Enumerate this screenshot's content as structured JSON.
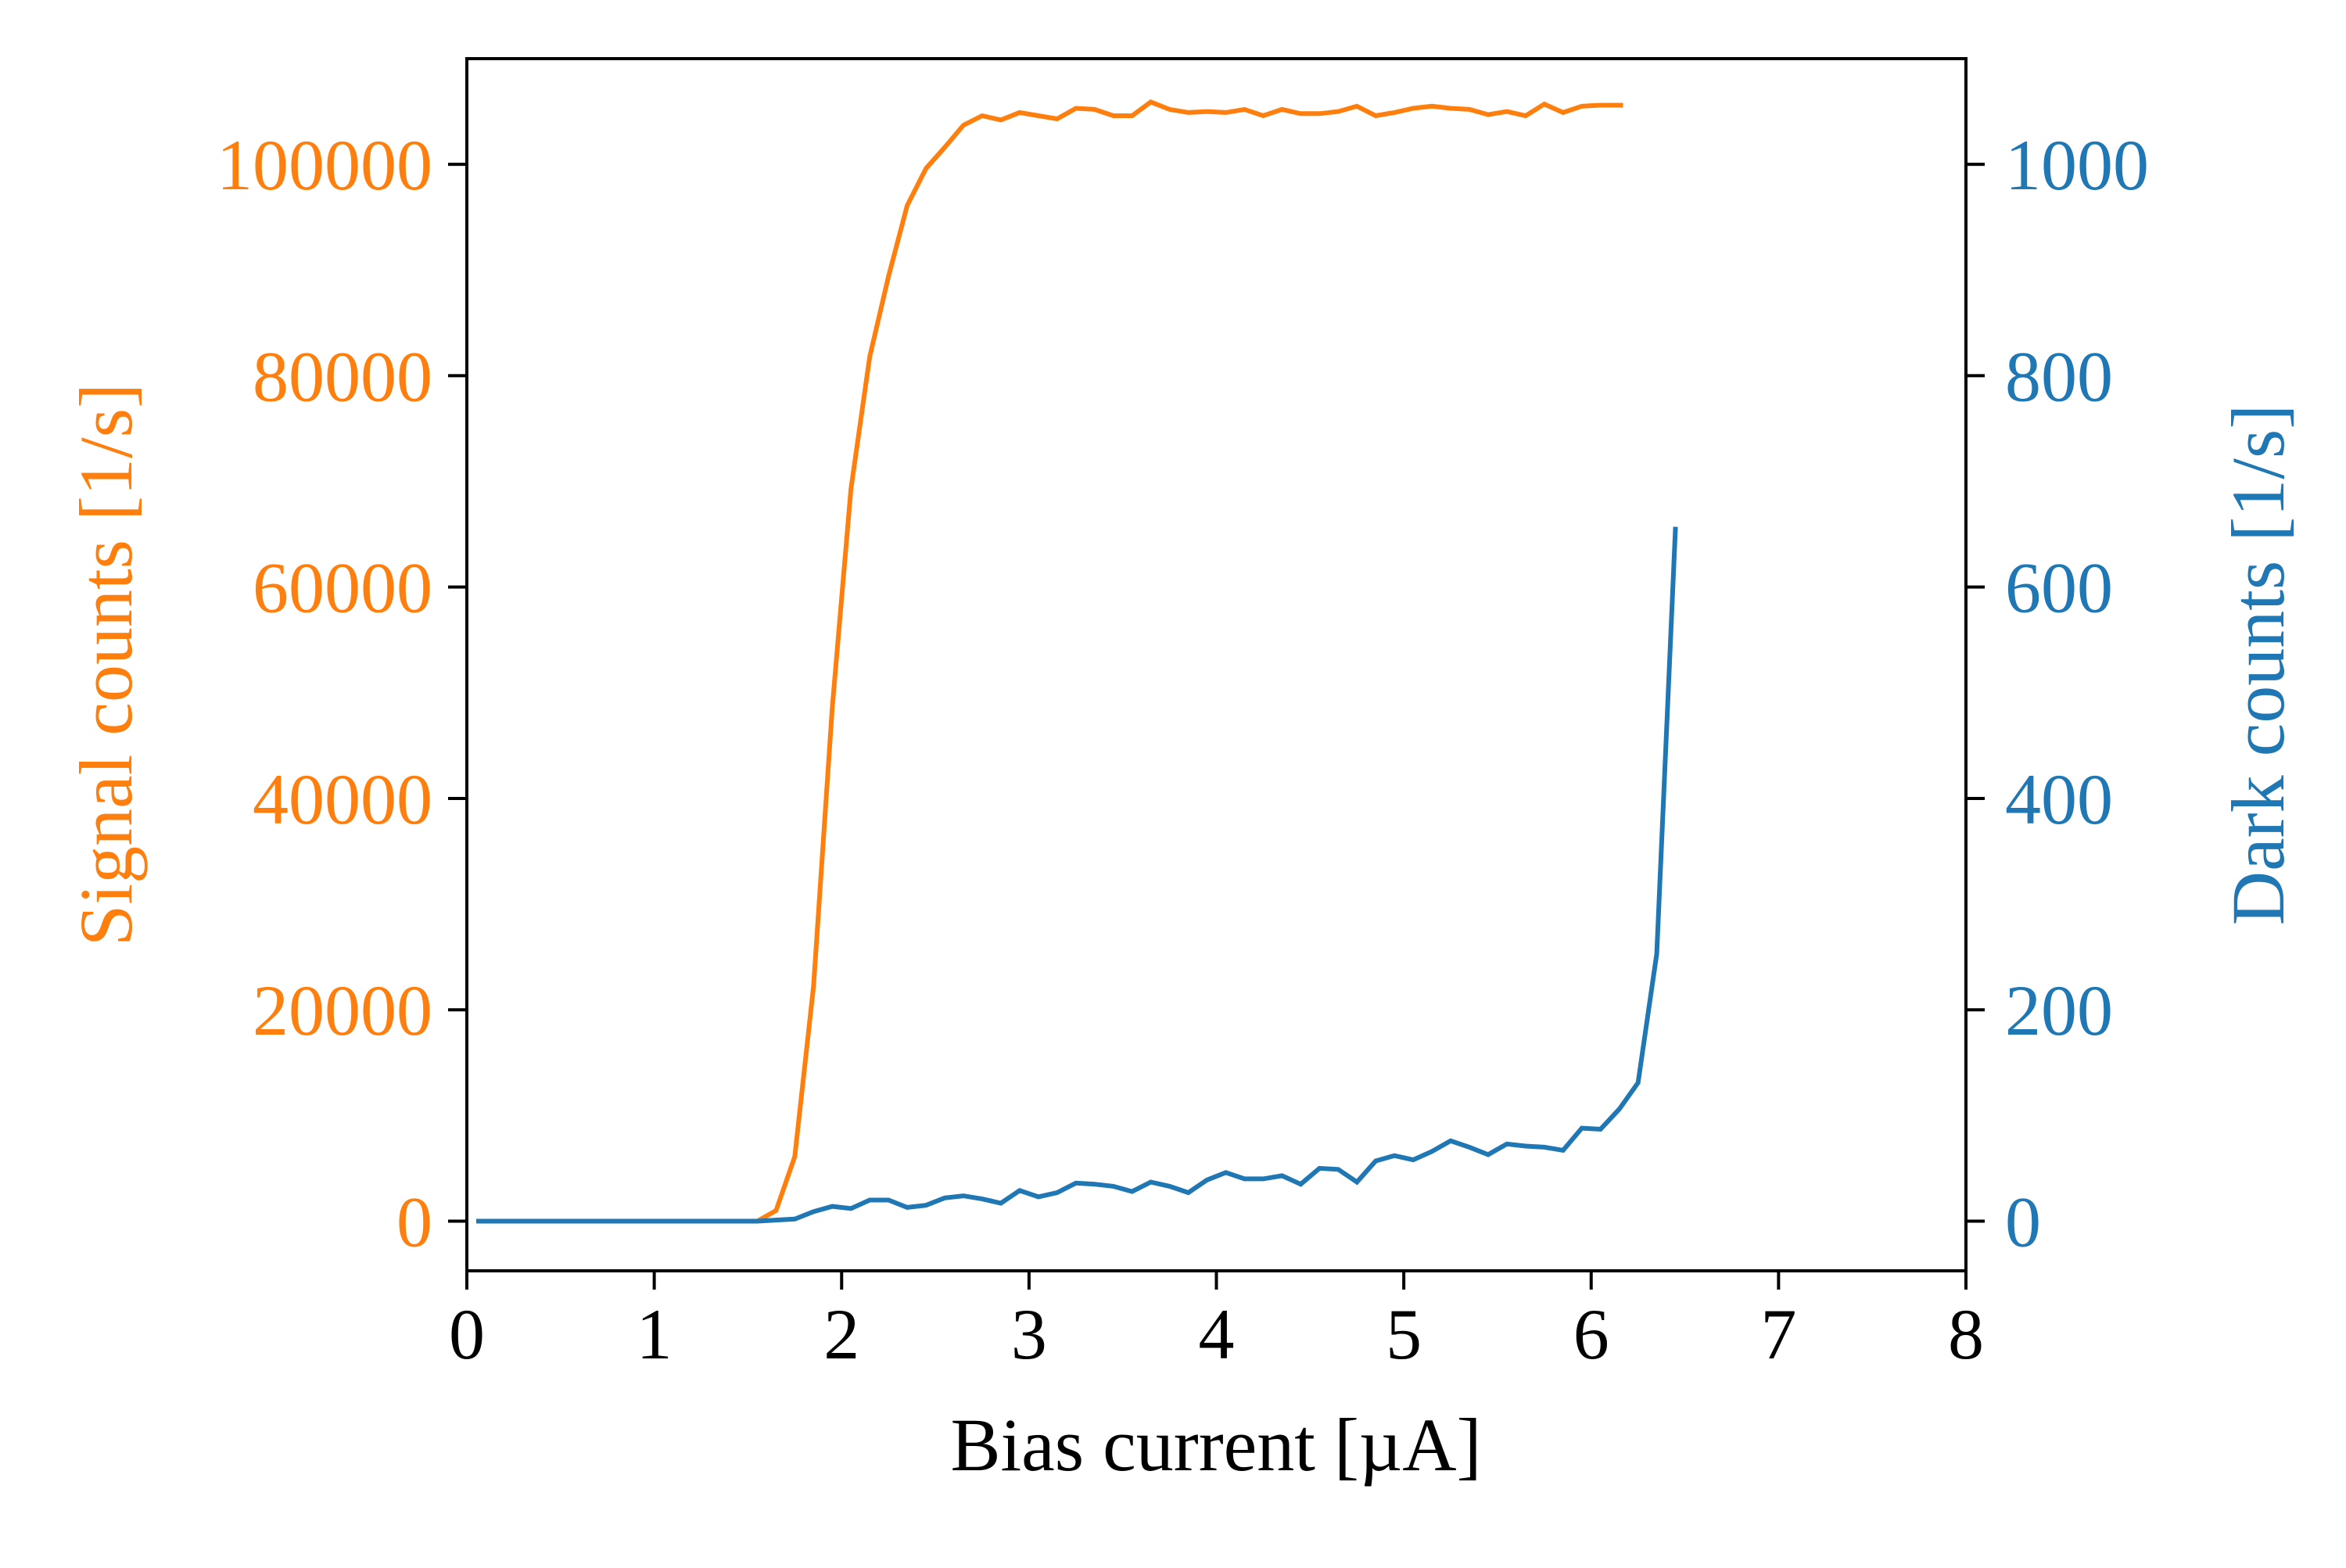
{
  "chart_data": {
    "type": "line",
    "title": "",
    "xlabel": "Bias current [µA]",
    "ylabel": "Signal counts [1/s]",
    "ylabel_right": "Dark counts [1/s]",
    "xlim": [
      0,
      8
    ],
    "ylim": [
      -4700,
      110000
    ],
    "ylim_right": [
      -47,
      1100
    ],
    "grid": false,
    "legend": null,
    "x_ticks": [
      0,
      1,
      2,
      3,
      4,
      5,
      6,
      7,
      8
    ],
    "x_tick_labels": [
      "0",
      "1",
      "2",
      "3",
      "4",
      "5",
      "6",
      "7",
      "8"
    ],
    "y_ticks": [
      0,
      20000,
      40000,
      60000,
      80000,
      100000
    ],
    "y_tick_labels": [
      "0",
      "20000",
      "40000",
      "60000",
      "80000",
      "100000"
    ],
    "y_ticks_right": [
      0,
      200,
      400,
      600,
      800,
      1000
    ],
    "y_tick_labels_right": [
      "0",
      "200",
      "400",
      "600",
      "800",
      "1000"
    ],
    "series": [
      {
        "name": "Signal counts",
        "axis": "left",
        "color": "#ff7f0e",
        "x": [
          0.05,
          0.15,
          0.25,
          0.35,
          0.45,
          0.55,
          0.65,
          0.75,
          0.85,
          0.95,
          1.05,
          1.15,
          1.25,
          1.35,
          1.45,
          1.55,
          1.65,
          1.75,
          1.85,
          1.95,
          2.05,
          2.15,
          2.25,
          2.35,
          2.45,
          2.55,
          2.65,
          2.75,
          2.85,
          2.95,
          3.05,
          3.15,
          3.25,
          3.35,
          3.45,
          3.55,
          3.65,
          3.75,
          3.85,
          3.95,
          4.05,
          4.15,
          4.25,
          4.35,
          4.45,
          4.55,
          4.65,
          4.75,
          4.85,
          4.95,
          5.05,
          5.15,
          5.25,
          5.35,
          5.45,
          5.55,
          5.65,
          5.75,
          5.85,
          5.95,
          6.05,
          6.17
        ],
        "values": [
          0,
          0,
          0,
          0,
          0,
          0,
          0,
          0,
          0,
          0,
          0,
          0,
          0,
          0,
          0,
          0,
          1000,
          6100,
          22200,
          48600,
          69300,
          81800,
          89400,
          96100,
          99600,
          101600,
          103700,
          104600,
          104200,
          104900,
          104600,
          104300,
          105300,
          105200,
          104600,
          104600,
          105900,
          105200,
          104900,
          105000,
          104900,
          105200,
          104600,
          105200,
          104800,
          104800,
          105000,
          105500,
          104600,
          104900,
          105300,
          105500,
          105300,
          105200,
          104700,
          105000,
          104600,
          105700,
          104900,
          105500,
          105600,
          105600
        ]
      },
      {
        "name": "Dark counts",
        "axis": "right",
        "color": "#1f77b4",
        "x": [
          0.05,
          0.15,
          0.25,
          0.35,
          0.45,
          0.55,
          0.65,
          0.75,
          0.85,
          0.95,
          1.05,
          1.15,
          1.25,
          1.35,
          1.45,
          1.55,
          1.65,
          1.75,
          1.85,
          1.95,
          2.05,
          2.15,
          2.25,
          2.35,
          2.45,
          2.55,
          2.65,
          2.75,
          2.85,
          2.95,
          3.05,
          3.15,
          3.25,
          3.35,
          3.45,
          3.55,
          3.65,
          3.75,
          3.85,
          3.95,
          4.05,
          4.15,
          4.25,
          4.35,
          4.45,
          4.55,
          4.65,
          4.75,
          4.85,
          4.95,
          5.05,
          5.15,
          5.25,
          5.35,
          5.45,
          5.55,
          5.65,
          5.75,
          5.85,
          5.95,
          6.05,
          6.15,
          6.25,
          6.35,
          6.45
        ],
        "values": [
          0,
          0,
          0,
          0,
          0,
          0,
          0,
          0,
          0,
          0,
          0,
          0,
          0,
          0,
          0,
          0,
          1,
          2,
          9,
          14,
          12,
          20,
          20,
          13,
          15,
          22,
          24,
          21,
          17,
          29,
          23,
          27,
          36,
          35,
          33,
          28,
          37,
          33,
          27,
          39,
          46,
          40,
          40,
          43,
          35,
          50,
          49,
          37,
          57,
          62,
          58,
          66,
          76,
          70,
          63,
          73,
          71,
          70,
          67,
          88,
          87,
          106,
          131,
          253,
          657
        ]
      }
    ]
  },
  "style": {
    "signal_color": "#ff7f0e",
    "dark_color": "#1f77b4",
    "axis_color": "#000000",
    "background": "#ffffff"
  }
}
